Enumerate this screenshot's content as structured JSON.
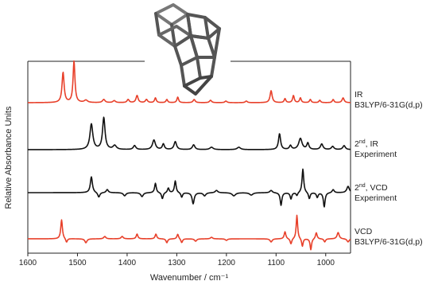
{
  "chart_data": {
    "type": "line",
    "xlabel": "Wavenumber / cm⁻¹",
    "ylabel": "Relative Absorbance Units",
    "xlim": [
      1600,
      950
    ],
    "x_reversed": true,
    "x_ticks": [
      1600,
      1500,
      1400,
      1300,
      1200,
      1100,
      1000
    ],
    "x_tick_labels": [
      "1600",
      "1500",
      "1400",
      "1300",
      "1200",
      "1100",
      "1000"
    ],
    "grid": false,
    "inset": "molecular-structure-cage",
    "series": [
      {
        "label_line1_main": "IR",
        "label_line1_sup": "",
        "label_line1_rest": "",
        "label_line2": "B3LYP/6-31G(d,p)",
        "color": "#e8402a",
        "peaks": [
          {
            "x": 1529,
            "h": 38,
            "w": 5
          },
          {
            "x": 1507,
            "h": 52,
            "w": 4.5
          },
          {
            "x": 1483,
            "h": 3,
            "w": 8
          },
          {
            "x": 1447,
            "h": 4,
            "w": 6
          },
          {
            "x": 1426,
            "h": 2.5,
            "w": 6
          },
          {
            "x": 1398,
            "h": 4,
            "w": 5
          },
          {
            "x": 1380,
            "h": 9,
            "w": 5
          },
          {
            "x": 1361,
            "h": 4,
            "w": 5
          },
          {
            "x": 1343,
            "h": 6,
            "w": 4
          },
          {
            "x": 1320,
            "h": 4,
            "w": 4
          },
          {
            "x": 1298,
            "h": 7,
            "w": 4
          },
          {
            "x": 1265,
            "h": 4,
            "w": 5
          },
          {
            "x": 1232,
            "h": 3,
            "w": 5
          },
          {
            "x": 1201,
            "h": 2,
            "w": 5
          },
          {
            "x": 1160,
            "h": 2,
            "w": 5
          },
          {
            "x": 1110,
            "h": 15,
            "w": 5
          },
          {
            "x": 1082,
            "h": 5,
            "w": 4
          },
          {
            "x": 1065,
            "h": 9,
            "w": 4
          },
          {
            "x": 1051,
            "h": 6,
            "w": 4
          },
          {
            "x": 1031,
            "h": 4,
            "w": 4
          },
          {
            "x": 1012,
            "h": 3,
            "w": 4
          },
          {
            "x": 985,
            "h": 4,
            "w": 4
          },
          {
            "x": 965,
            "h": 6,
            "w": 5
          }
        ]
      },
      {
        "label_line1_main": "2",
        "label_line1_sup": "nd",
        "label_line1_rest": ", IR",
        "label_line2": "Experiment",
        "color": "#111111",
        "peaks": [
          {
            "x": 1472,
            "h": 32,
            "w": 7
          },
          {
            "x": 1447,
            "h": 40,
            "w": 6
          },
          {
            "x": 1425,
            "h": 5,
            "w": 8
          },
          {
            "x": 1385,
            "h": 5,
            "w": 6
          },
          {
            "x": 1346,
            "h": 12,
            "w": 7
          },
          {
            "x": 1327,
            "h": 7,
            "w": 5
          },
          {
            "x": 1303,
            "h": 10,
            "w": 6
          },
          {
            "x": 1266,
            "h": 6,
            "w": 6
          },
          {
            "x": 1230,
            "h": 3,
            "w": 8
          },
          {
            "x": 1175,
            "h": 3,
            "w": 8
          },
          {
            "x": 1093,
            "h": 20,
            "w": 5
          },
          {
            "x": 1071,
            "h": 5,
            "w": 5
          },
          {
            "x": 1051,
            "h": 14,
            "w": 8
          },
          {
            "x": 1036,
            "h": 8,
            "w": 5
          },
          {
            "x": 1008,
            "h": 7,
            "w": 6
          },
          {
            "x": 986,
            "h": 4,
            "w": 6
          },
          {
            "x": 963,
            "h": 5,
            "w": 6
          }
        ]
      },
      {
        "label_line1_main": "2",
        "label_line1_sup": "nd",
        "label_line1_rest": ", VCD",
        "label_line2": "Experiment",
        "color": "#111111",
        "peaks": [
          {
            "x": 1472,
            "h": 20,
            "w": 5
          },
          {
            "x": 1457,
            "h": -6,
            "w": 5
          },
          {
            "x": 1440,
            "h": 4,
            "w": 5
          },
          {
            "x": 1405,
            "h": -4,
            "w": 6
          },
          {
            "x": 1370,
            "h": -5,
            "w": 6
          },
          {
            "x": 1343,
            "h": 12,
            "w": 4
          },
          {
            "x": 1329,
            "h": -8,
            "w": 4
          },
          {
            "x": 1317,
            "h": 6,
            "w": 4
          },
          {
            "x": 1303,
            "h": 15,
            "w": 4
          },
          {
            "x": 1290,
            "h": -6,
            "w": 4
          },
          {
            "x": 1267,
            "h": -14,
            "w": 5
          },
          {
            "x": 1244,
            "h": -4,
            "w": 6
          },
          {
            "x": 1220,
            "h": 3,
            "w": 6
          },
          {
            "x": 1185,
            "h": -4,
            "w": 8
          },
          {
            "x": 1150,
            "h": -3,
            "w": 8
          },
          {
            "x": 1110,
            "h": 3,
            "w": 6
          },
          {
            "x": 1090,
            "h": -16,
            "w": 4
          },
          {
            "x": 1070,
            "h": -8,
            "w": 4
          },
          {
            "x": 1058,
            "h": -4,
            "w": 4
          },
          {
            "x": 1046,
            "h": 30,
            "w": 4
          },
          {
            "x": 1033,
            "h": -8,
            "w": 4
          },
          {
            "x": 1017,
            "h": -6,
            "w": 4
          },
          {
            "x": 1003,
            "h": -18,
            "w": 4
          },
          {
            "x": 985,
            "h": 4,
            "w": 5
          },
          {
            "x": 955,
            "h": 8,
            "w": 6
          }
        ]
      },
      {
        "label_line1_main": "VCD",
        "label_line1_sup": "",
        "label_line1_rest": "",
        "label_line2": "B3LYP/6-31G(d,p)",
        "color": "#e8402a",
        "peaks": [
          {
            "x": 1532,
            "h": 24,
            "w": 4
          },
          {
            "x": 1522,
            "h": -5,
            "w": 4
          },
          {
            "x": 1483,
            "h": -5,
            "w": 5
          },
          {
            "x": 1445,
            "h": 3,
            "w": 5
          },
          {
            "x": 1410,
            "h": 3,
            "w": 5
          },
          {
            "x": 1380,
            "h": 6,
            "w": 4
          },
          {
            "x": 1342,
            "h": 6,
            "w": 4
          },
          {
            "x": 1320,
            "h": -5,
            "w": 4
          },
          {
            "x": 1298,
            "h": 6,
            "w": 4
          },
          {
            "x": 1290,
            "h": -5,
            "w": 4
          },
          {
            "x": 1262,
            "h": -3,
            "w": 5
          },
          {
            "x": 1230,
            "h": 2,
            "w": 5
          },
          {
            "x": 1200,
            "h": -2,
            "w": 5
          },
          {
            "x": 1110,
            "h": -4,
            "w": 5
          },
          {
            "x": 1082,
            "h": 9,
            "w": 4
          },
          {
            "x": 1070,
            "h": -7,
            "w": 4
          },
          {
            "x": 1058,
            "h": 30,
            "w": 3.5
          },
          {
            "x": 1047,
            "h": -10,
            "w": 3.5
          },
          {
            "x": 1030,
            "h": -14,
            "w": 3.5
          },
          {
            "x": 1019,
            "h": 8,
            "w": 4
          },
          {
            "x": 1002,
            "h": -4,
            "w": 4
          },
          {
            "x": 975,
            "h": 8,
            "w": 5
          },
          {
            "x": 955,
            "h": -4,
            "w": 5
          }
        ]
      }
    ]
  }
}
